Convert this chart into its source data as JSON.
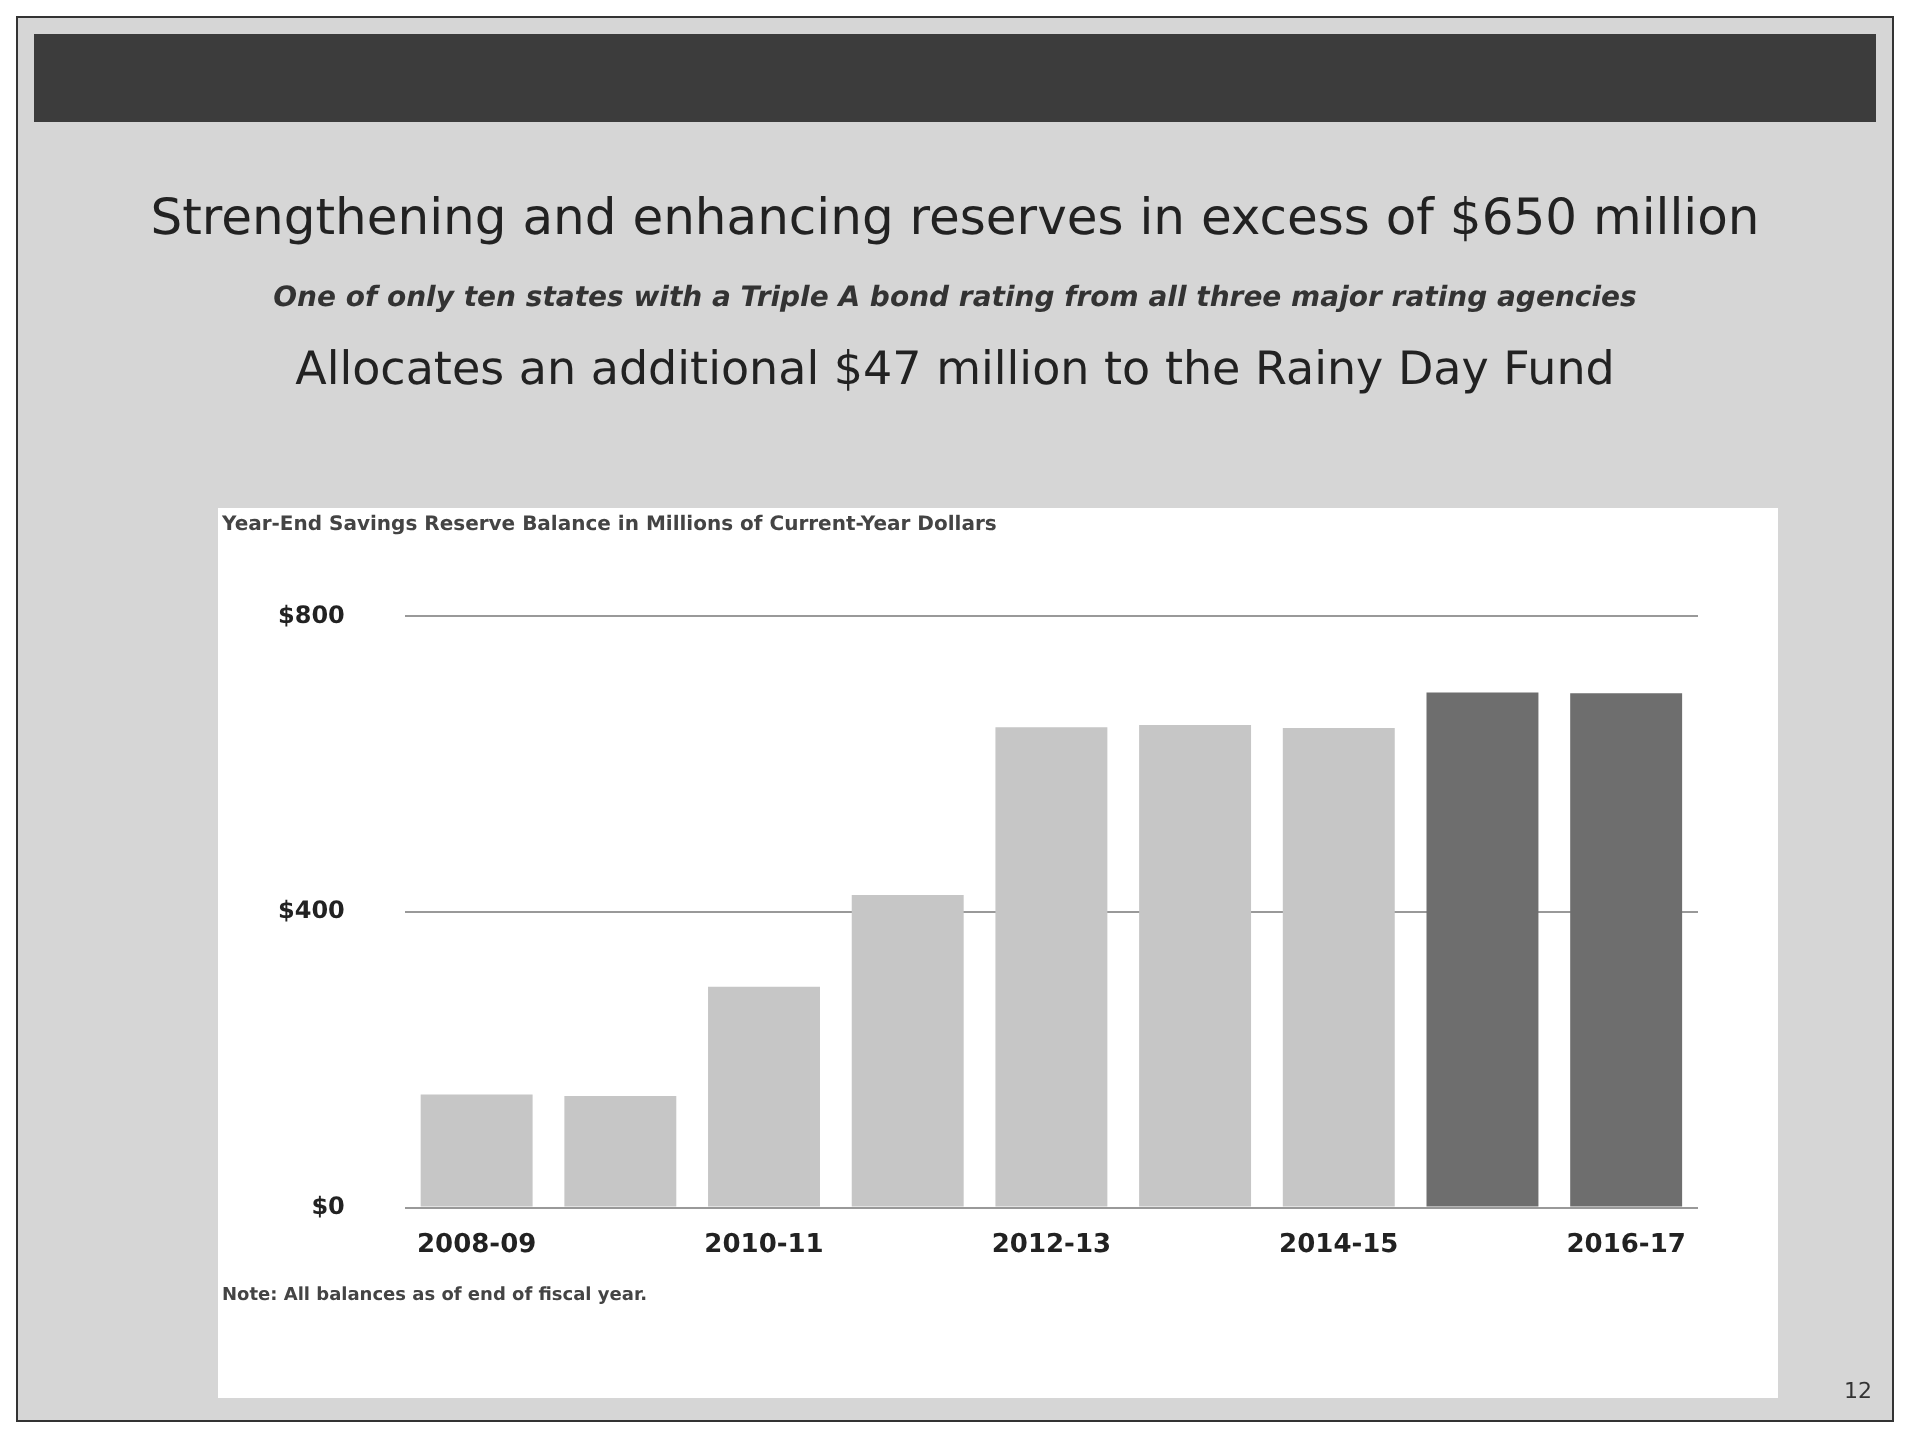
{
  "chart_data": {
    "type": "bar",
    "title": "Strengthening and enhancing reserves in excess of $650 million",
    "subtitle": "One of only ten states with a Triple A bond rating from all three major rating agencies",
    "ylabel": "Year-End Savings Reserve Balance in Millions of Current-Year Dollars",
    "annotations": [
      "Allocates an additional $47 million to the Rainy Day Fund",
      "Note: All balances as of end of fiscal year.",
      "12"
    ],
    "categories": [
      "2008-09",
      null,
      "2010-11",
      null,
      "2012-13",
      null,
      "2014-15",
      null,
      "2016-17"
    ],
    "values": [
      153,
      151,
      299,
      423,
      650,
      653,
      649,
      697,
      696
    ],
    "colors": [
      "#c6c6c6",
      "#c6c6c6",
      "#c6c6c6",
      "#c6c6c6",
      "#c6c6c6",
      "#c6c6c6",
      "#c6c6c6",
      "#6e6e6e",
      "#6e6e6e"
    ],
    "ylim": [
      0,
      800
    ],
    "yticks": [
      {
        "value": 0,
        "label": "$0"
      },
      {
        "value": 400,
        "label": "$400"
      },
      {
        "value": 800,
        "label": "$800"
      }
    ],
    "grid": "y",
    "legend": false
  }
}
